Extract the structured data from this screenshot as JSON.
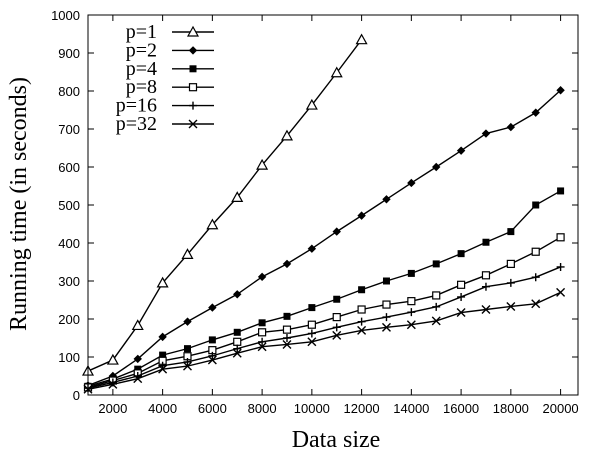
{
  "chart_data": {
    "type": "line",
    "xlabel": "Data size",
    "ylabel": "Running time (in seconds)",
    "xlim": [
      1000,
      20700
    ],
    "ylim": [
      0,
      1000
    ],
    "xticks": [
      2000,
      4000,
      6000,
      8000,
      10000,
      12000,
      14000,
      16000,
      18000,
      20000
    ],
    "yticks": [
      0,
      100,
      200,
      300,
      400,
      500,
      600,
      700,
      800,
      900,
      1000
    ],
    "legend_position": "top-left",
    "grid": false,
    "series": [
      {
        "name": "p=1",
        "marker": "triangle",
        "x": [
          1000,
          2000,
          3000,
          4000,
          5000,
          6000,
          7000,
          8000,
          9000,
          10000,
          11000,
          12000
        ],
        "values": [
          63,
          92,
          183,
          295,
          370,
          448,
          520,
          605,
          682,
          763,
          848,
          935
        ]
      },
      {
        "name": "p=2",
        "marker": "diamond",
        "x": [
          1000,
          2000,
          3000,
          4000,
          5000,
          6000,
          7000,
          8000,
          9000,
          10000,
          11000,
          12000,
          13000,
          14000,
          15000,
          16000,
          17000,
          18000,
          19000,
          20000
        ],
        "values": [
          25,
          50,
          95,
          153,
          193,
          230,
          265,
          311,
          345,
          385,
          430,
          472,
          515,
          558,
          600,
          643,
          688,
          705,
          743,
          802
        ]
      },
      {
        "name": "p=4",
        "marker": "filled-square",
        "x": [
          1000,
          2000,
          3000,
          4000,
          5000,
          6000,
          7000,
          8000,
          9000,
          10000,
          11000,
          12000,
          13000,
          14000,
          15000,
          16000,
          17000,
          18000,
          19000,
          20000
        ],
        "values": [
          23,
          42,
          68,
          105,
          122,
          145,
          165,
          190,
          207,
          230,
          252,
          277,
          300,
          320,
          345,
          372,
          402,
          430,
          500,
          537
        ]
      },
      {
        "name": "p=8",
        "marker": "open-square",
        "x": [
          1000,
          2000,
          3000,
          4000,
          5000,
          6000,
          7000,
          8000,
          9000,
          10000,
          11000,
          12000,
          13000,
          14000,
          15000,
          16000,
          17000,
          18000,
          19000,
          20000
        ],
        "values": [
          20,
          38,
          57,
          90,
          102,
          118,
          140,
          165,
          172,
          185,
          205,
          225,
          238,
          247,
          262,
          290,
          315,
          345,
          377,
          415
        ]
      },
      {
        "name": "p=16",
        "marker": "plus",
        "x": [
          1000,
          2000,
          3000,
          4000,
          5000,
          6000,
          7000,
          8000,
          9000,
          10000,
          11000,
          12000,
          13000,
          14000,
          15000,
          16000,
          17000,
          18000,
          19000,
          20000
        ],
        "values": [
          18,
          33,
          50,
          77,
          87,
          103,
          122,
          140,
          150,
          162,
          178,
          193,
          205,
          218,
          232,
          258,
          285,
          295,
          310,
          337
        ]
      },
      {
        "name": "p=32",
        "marker": "cross",
        "x": [
          1000,
          2000,
          3000,
          4000,
          5000,
          6000,
          7000,
          8000,
          9000,
          10000,
          11000,
          12000,
          13000,
          14000,
          15000,
          16000,
          17000,
          18000,
          19000,
          20000
        ],
        "values": [
          15,
          28,
          43,
          68,
          76,
          92,
          110,
          127,
          133,
          140,
          157,
          170,
          178,
          185,
          195,
          217,
          225,
          233,
          240,
          270
        ]
      }
    ]
  }
}
